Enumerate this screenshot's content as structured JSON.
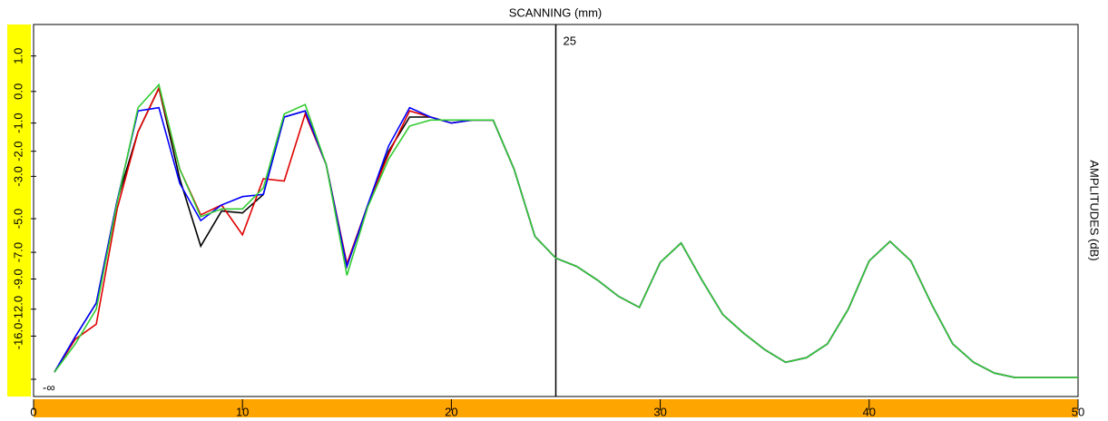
{
  "chart_data": {
    "type": "line",
    "title": "SCANNING (mm)",
    "y_label": "AMPLITUDES (dB)",
    "y_scale": "db-amplitude",
    "x": [
      1,
      2,
      3,
      4,
      5,
      6,
      7,
      8,
      9,
      10,
      11,
      12,
      13,
      14,
      15,
      16,
      17,
      18,
      19,
      20,
      21,
      22,
      23,
      24,
      25,
      26,
      27,
      28,
      29,
      30,
      31,
      32,
      33,
      34,
      35,
      36,
      37,
      38,
      39,
      40,
      41,
      42,
      43,
      44,
      45,
      46,
      47,
      48,
      49,
      50
    ],
    "xlim": [
      0,
      50
    ],
    "xticks": [
      0,
      10,
      20,
      30,
      40,
      50
    ],
    "ylim": [
      -40,
      1.8
    ],
    "yticks": [
      {
        "value": -40,
        "label": "-∞"
      },
      {
        "value": -16,
        "label": "-16.0"
      },
      {
        "value": -12,
        "label": "-12.0"
      },
      {
        "value": -9,
        "label": "-9.0"
      },
      {
        "value": -7,
        "label": "-7.0"
      },
      {
        "value": -5,
        "label": "-5.0"
      },
      {
        "value": -3,
        "label": "-3.0"
      },
      {
        "value": -2,
        "label": "-2.0"
      },
      {
        "value": -1,
        "label": "-1.0"
      },
      {
        "value": 0,
        "label": "0.0"
      },
      {
        "value": 1,
        "label": "1.0"
      }
    ],
    "cursor_x": 25,
    "series": [
      {
        "color": "#000000",
        "values": [
          -29.3,
          -16.1,
          -11.3,
          -4.1,
          -1.3,
          0.1,
          -3.1,
          -6.6,
          -4.6,
          -4.7,
          -3.8,
          -0.8,
          -0.6,
          -2.5,
          -8.0,
          -4.3,
          -2.0,
          -0.8,
          -0.8,
          -1.0,
          -0.9,
          -0.9,
          -2.7,
          -6.0,
          -7.4,
          -8.0,
          -9.1,
          -10.6,
          -11.8,
          -7.7,
          -6.4,
          -9.1,
          -12.7,
          -15.5,
          -19.0,
          -23.3,
          -21.5,
          -17.6,
          -12.0,
          -7.6,
          -6.3,
          -7.6,
          -11.5,
          -17.6,
          -23.3,
          -30.1,
          -36.2,
          -36.2,
          -36.2,
          -36.2
        ]
      },
      {
        "color": "#e00000",
        "values": [
          -29.3,
          -16.6,
          -14.0,
          -4.5,
          -1.3,
          0.1,
          -2.7,
          -4.8,
          -4.3,
          -5.9,
          -3.1,
          -3.2,
          -0.7,
          -2.5,
          -7.8,
          -4.3,
          -2.1,
          -0.6,
          -0.8,
          -1.0,
          -0.9,
          -0.9,
          -2.7,
          -6.0,
          -7.4,
          -8.0,
          -9.1,
          -10.6,
          -11.8,
          -7.7,
          -6.4,
          -9.1,
          -12.7,
          -15.5,
          -19.0,
          -23.3,
          -21.5,
          -17.6,
          -12.0,
          -7.6,
          -6.3,
          -7.6,
          -11.5,
          -17.6,
          -23.3,
          -30.1,
          -36.2,
          -36.2,
          -36.2,
          -36.2
        ]
      },
      {
        "color": "#0000ff",
        "values": [
          -29.3,
          -16.1,
          -11.3,
          -4.1,
          -0.6,
          -0.5,
          -3.3,
          -5.1,
          -4.3,
          -3.9,
          -3.8,
          -0.8,
          -0.6,
          -2.5,
          -8.0,
          -4.3,
          -1.8,
          -0.5,
          -0.8,
          -1.0,
          -0.9,
          -0.9,
          -2.7,
          -6.0,
          -7.4,
          -8.0,
          -9.1,
          -10.6,
          -11.8,
          -7.7,
          -6.4,
          -9.1,
          -12.7,
          -15.5,
          -19.0,
          -23.3,
          -21.5,
          -17.6,
          -12.0,
          -7.6,
          -6.3,
          -7.6,
          -11.5,
          -17.6,
          -23.3,
          -30.1,
          -36.2,
          -36.2,
          -36.2,
          -36.2
        ]
      },
      {
        "color": "#33cc33",
        "values": [
          -29.3,
          -17.6,
          -12.0,
          -4.2,
          -0.5,
          0.2,
          -2.7,
          -4.9,
          -4.5,
          -4.5,
          -3.5,
          -0.7,
          -0.4,
          -2.5,
          -8.7,
          -4.4,
          -2.3,
          -1.1,
          -0.9,
          -0.9,
          -0.9,
          -0.9,
          -2.7,
          -6.0,
          -7.4,
          -8.0,
          -9.1,
          -10.6,
          -11.8,
          -7.7,
          -6.4,
          -9.1,
          -12.7,
          -15.5,
          -19.0,
          -23.3,
          -21.5,
          -17.6,
          -12.0,
          -7.6,
          -6.3,
          -7.6,
          -11.5,
          -17.6,
          -23.3,
          -30.1,
          -36.2,
          -36.2,
          -36.2,
          -36.2
        ]
      }
    ]
  }
}
